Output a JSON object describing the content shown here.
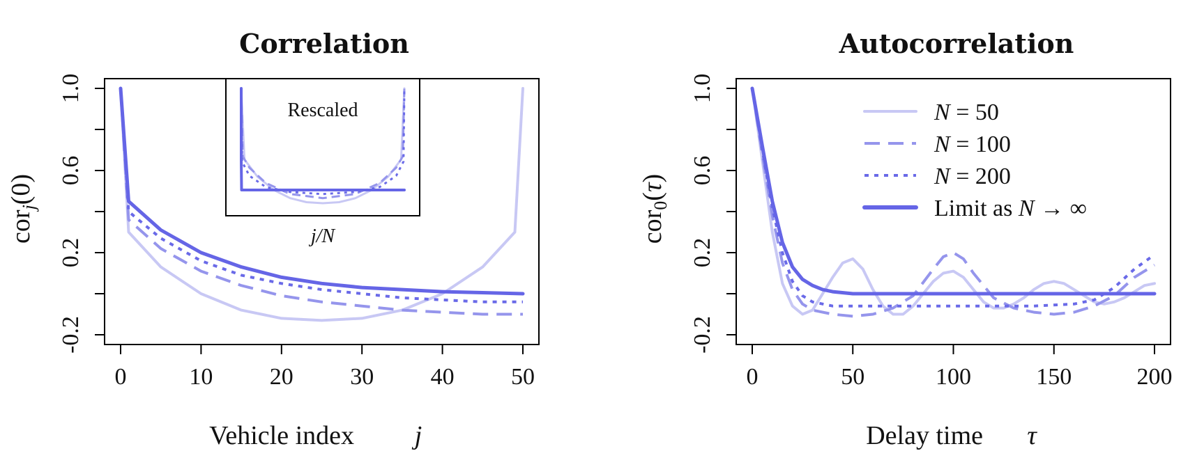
{
  "chart_data": [
    {
      "type": "line",
      "title": "Correlation",
      "xlabel": "Vehicle index",
      "xlabel_symbol": "j",
      "ylabel": "cor_j(0)",
      "xlim": [
        0,
        50
      ],
      "ylim": [
        -0.2,
        1.0
      ],
      "xticks": [
        "0",
        "10",
        "20",
        "30",
        "40",
        "50"
      ],
      "yticks": [
        "-0.2",
        "0.2",
        "0.6",
        "1.0"
      ],
      "series": [
        {
          "name": "N = 50",
          "style": "solid-light",
          "x": [
            0,
            1,
            5,
            10,
            15,
            20,
            25,
            30,
            35,
            40,
            45,
            49,
            50
          ],
          "y": [
            1.0,
            0.3,
            0.13,
            0.0,
            -0.08,
            -0.12,
            -0.13,
            -0.12,
            -0.08,
            0.0,
            0.13,
            0.3,
            1.0
          ]
        },
        {
          "name": "N = 100",
          "style": "dashed",
          "x": [
            0,
            1,
            5,
            10,
            15,
            20,
            25,
            30,
            35,
            40,
            45,
            50
          ],
          "y": [
            1.0,
            0.36,
            0.22,
            0.11,
            0.04,
            -0.01,
            -0.04,
            -0.06,
            -0.08,
            -0.09,
            -0.1,
            -0.1
          ]
        },
        {
          "name": "N = 200",
          "style": "dotted",
          "x": [
            0,
            1,
            5,
            10,
            15,
            20,
            25,
            30,
            35,
            40,
            45,
            50
          ],
          "y": [
            1.0,
            0.4,
            0.27,
            0.16,
            0.09,
            0.05,
            0.02,
            0.0,
            -0.02,
            -0.03,
            -0.04,
            -0.04
          ]
        },
        {
          "name": "Limit as N → ∞",
          "style": "solid-thick",
          "x": [
            0,
            1,
            5,
            10,
            15,
            20,
            25,
            30,
            35,
            40,
            45,
            50
          ],
          "y": [
            1.0,
            0.45,
            0.31,
            0.2,
            0.13,
            0.08,
            0.05,
            0.03,
            0.02,
            0.01,
            0.005,
            0.0
          ]
        }
      ],
      "inset": {
        "label": "Rescaled",
        "xlabel": "j/N",
        "xlim": [
          0,
          1
        ],
        "ylim": [
          -0.2,
          1.0
        ],
        "series": [
          {
            "name": "N = 50",
            "style": "solid-light",
            "x": [
              0,
              0.02,
              0.1,
              0.2,
              0.3,
              0.4,
              0.5,
              0.6,
              0.7,
              0.8,
              0.9,
              0.98,
              1.0
            ],
            "y": [
              1.0,
              0.3,
              0.13,
              0.0,
              -0.08,
              -0.12,
              -0.13,
              -0.12,
              -0.08,
              0.0,
              0.13,
              0.3,
              1.0
            ]
          },
          {
            "name": "N = 100",
            "style": "dashed",
            "x": [
              0,
              0.01,
              0.05,
              0.15,
              0.3,
              0.5,
              0.7,
              0.85,
              0.95,
              0.99,
              1.0
            ],
            "y": [
              1.0,
              0.33,
              0.22,
              0.07,
              -0.04,
              -0.08,
              -0.04,
              0.07,
              0.22,
              0.33,
              1.0
            ]
          },
          {
            "name": "N = 200",
            "style": "dotted",
            "x": [
              0,
              0.005,
              0.05,
              0.15,
              0.3,
              0.5,
              0.7,
              0.85,
              0.95,
              0.995,
              1.0
            ],
            "y": [
              1.0,
              0.28,
              0.14,
              0.03,
              -0.02,
              -0.04,
              -0.02,
              0.03,
              0.14,
              0.28,
              1.0
            ]
          },
          {
            "name": "Limit as N → ∞",
            "style": "solid-thick",
            "x": [
              0,
              0.0,
              0.002,
              1.0
            ],
            "y": [
              1.0,
              0.3,
              0.0,
              0.0
            ]
          }
        ]
      }
    },
    {
      "type": "line",
      "title": "Autocorrelation",
      "xlabel": "Delay time",
      "xlabel_symbol": "τ",
      "ylabel": "cor_0(τ)",
      "xlim": [
        0,
        200
      ],
      "ylim": [
        -0.2,
        1.0
      ],
      "xticks": [
        "0",
        "50",
        "100",
        "150",
        "200"
      ],
      "yticks": [
        "-0.2",
        "0.2",
        "0.6",
        "1.0"
      ],
      "legend_position": "top-right",
      "series": [
        {
          "name": "N = 50",
          "style": "solid-light",
          "x": [
            0,
            5,
            10,
            15,
            20,
            25,
            30,
            35,
            40,
            45,
            50,
            55,
            60,
            65,
            70,
            75,
            80,
            85,
            90,
            95,
            100,
            105,
            110,
            115,
            120,
            125,
            130,
            135,
            140,
            145,
            150,
            155,
            160,
            165,
            170,
            175,
            180,
            185,
            190,
            195,
            200
          ],
          "y": [
            1.0,
            0.65,
            0.3,
            0.05,
            -0.06,
            -0.1,
            -0.08,
            0.0,
            0.08,
            0.15,
            0.17,
            0.12,
            0.02,
            -0.06,
            -0.1,
            -0.1,
            -0.06,
            0.0,
            0.06,
            0.1,
            0.11,
            0.08,
            0.02,
            -0.04,
            -0.07,
            -0.07,
            -0.05,
            -0.02,
            0.02,
            0.05,
            0.06,
            0.05,
            0.02,
            -0.01,
            -0.04,
            -0.05,
            -0.04,
            -0.02,
            0.01,
            0.04,
            0.05
          ]
        },
        {
          "name": "N = 100",
          "style": "dashed",
          "x": [
            0,
            5,
            10,
            15,
            20,
            25,
            30,
            40,
            50,
            60,
            70,
            80,
            90,
            95,
            100,
            105,
            110,
            120,
            130,
            140,
            150,
            160,
            170,
            180,
            190,
            200
          ],
          "y": [
            1.0,
            0.68,
            0.38,
            0.15,
            0.02,
            -0.05,
            -0.08,
            -0.1,
            -0.11,
            -0.1,
            -0.07,
            -0.01,
            0.12,
            0.18,
            0.2,
            0.17,
            0.1,
            -0.02,
            -0.07,
            -0.09,
            -0.1,
            -0.09,
            -0.06,
            -0.01,
            0.08,
            0.14
          ]
        },
        {
          "name": "N = 200",
          "style": "dotted",
          "x": [
            0,
            5,
            10,
            15,
            20,
            25,
            30,
            40,
            60,
            80,
            100,
            120,
            140,
            160,
            170,
            180,
            190,
            200
          ],
          "y": [
            1.0,
            0.7,
            0.42,
            0.2,
            0.06,
            -0.01,
            -0.04,
            -0.06,
            -0.06,
            -0.06,
            -0.06,
            -0.06,
            -0.06,
            -0.05,
            -0.03,
            0.03,
            0.12,
            0.19
          ]
        },
        {
          "name": "Limit as N → ∞",
          "style": "solid-thick",
          "x": [
            0,
            5,
            10,
            15,
            20,
            25,
            30,
            35,
            40,
            50,
            60,
            80,
            100,
            150,
            200
          ],
          "y": [
            1.0,
            0.72,
            0.45,
            0.25,
            0.13,
            0.07,
            0.04,
            0.02,
            0.01,
            0.0,
            0.0,
            0.0,
            0.0,
            0.0,
            0.0
          ]
        }
      ]
    }
  ],
  "legend": {
    "entries": [
      {
        "prefix": "N",
        "rest": " = 50",
        "style": "solid-light"
      },
      {
        "prefix": "N",
        "rest": " = 100",
        "style": "dashed"
      },
      {
        "prefix": "N",
        "rest": " = 200",
        "style": "dotted"
      },
      {
        "text_before": "Limit as ",
        "prefix": "N",
        "rest": " → ∞",
        "style": "solid-thick"
      }
    ]
  },
  "colors": {
    "solid-light": "#c8c8f4",
    "dashed": "#9595ec",
    "dotted": "#6a6ae8",
    "solid-thick": "#6565e6"
  }
}
